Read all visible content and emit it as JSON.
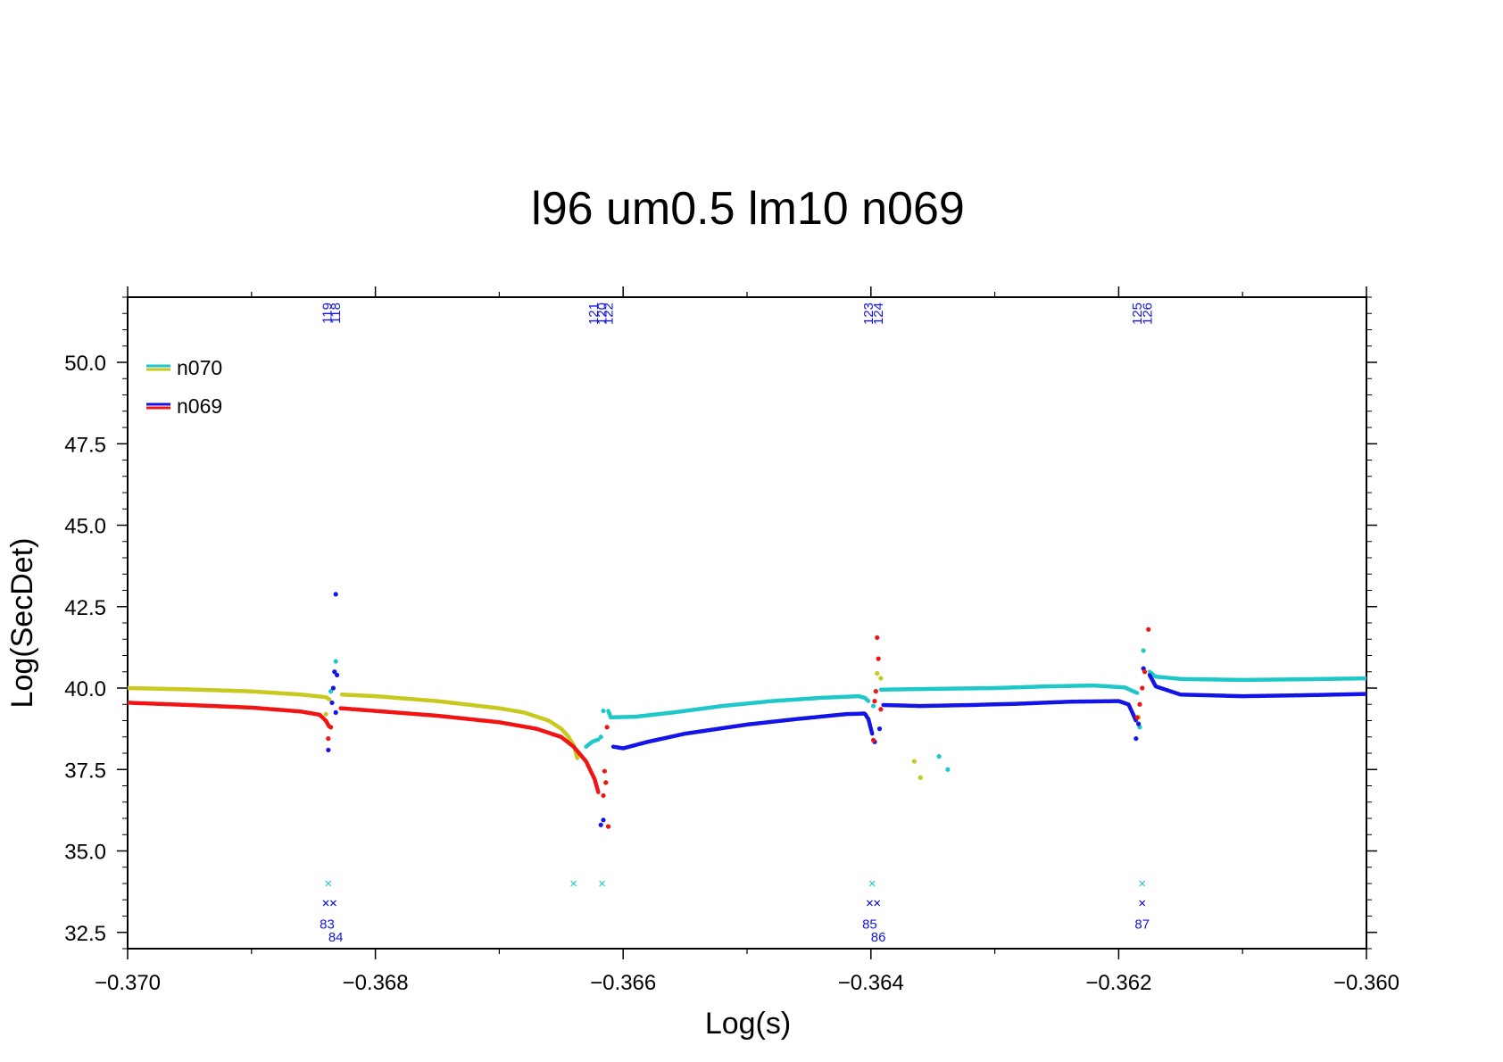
{
  "chart_data": {
    "type": "scatter",
    "title": "l96 um0.5 lm10 n069",
    "xlabel": "Log(s)",
    "ylabel": "Log(SecDet)",
    "xlim": [
      -0.37,
      -0.36
    ],
    "ylim": [
      32.0,
      52.0
    ],
    "x_ticks": [
      -0.37,
      -0.368,
      -0.366,
      -0.364,
      -0.362,
      -0.36
    ],
    "x_tick_labels": [
      "−0.370",
      "−0.368",
      "−0.366",
      "−0.364",
      "−0.362",
      "−0.360"
    ],
    "y_ticks": [
      32.5,
      35.0,
      37.5,
      40.0,
      42.5,
      45.0,
      47.5,
      50.0
    ],
    "y_tick_labels": [
      "32.5",
      "35.0",
      "37.5",
      "40.0",
      "42.5",
      "45.0",
      "47.5",
      "50.0"
    ],
    "grid": false,
    "legend_position": "top-left",
    "legend": [
      {
        "name": "n070",
        "colors": [
          "#1ec8c8",
          "#c8c81e"
        ]
      },
      {
        "name": "n069",
        "colors": [
          "#1414e6",
          "#f01414"
        ]
      }
    ],
    "series": [
      {
        "name": "n070",
        "colors": {
          "positive": "#1ec8c8",
          "negative": "#c8c81e"
        },
        "segments": [
          {
            "color": "#c8c81e",
            "points": [
              [
                -0.37,
                40.0
              ],
              [
                -0.3695,
                39.96
              ],
              [
                -0.369,
                39.9
              ],
              [
                -0.3686,
                39.8
              ],
              [
                -0.3684,
                39.72
              ],
              [
                -0.36837,
                39.65
              ]
            ]
          },
          {
            "color": "#c8c81e",
            "points": [
              [
                -0.36827,
                39.8
              ],
              [
                -0.368,
                39.75
              ],
              [
                -0.3675,
                39.6
              ],
              [
                -0.367,
                39.38
              ],
              [
                -0.3668,
                39.25
              ],
              [
                -0.3666,
                39.0
              ],
              [
                -0.3665,
                38.75
              ],
              [
                -0.36645,
                38.55
              ],
              [
                -0.3664,
                38.25
              ],
              [
                -0.36637,
                37.85
              ]
            ]
          },
          {
            "color": "#1ec8c8",
            "points": [
              [
                -0.3663,
                38.2
              ],
              [
                -0.36625,
                38.35
              ],
              [
                -0.3662,
                38.42
              ]
            ]
          },
          {
            "color": "#1ec8c8",
            "points": [
              [
                -0.36612,
                39.3
              ],
              [
                -0.3661,
                39.1
              ],
              [
                -0.3659,
                39.12
              ],
              [
                -0.3656,
                39.25
              ],
              [
                -0.3652,
                39.45
              ],
              [
                -0.3648,
                39.6
              ],
              [
                -0.3644,
                39.7
              ],
              [
                -0.3641,
                39.75
              ],
              [
                -0.36405,
                39.7
              ],
              [
                -0.36402,
                39.6
              ]
            ]
          },
          {
            "color": "#1ec8c8",
            "points": [
              [
                -0.36392,
                39.95
              ],
              [
                -0.3638,
                39.96
              ],
              [
                -0.3634,
                39.98
              ],
              [
                -0.363,
                40.0
              ],
              [
                -0.3626,
                40.05
              ],
              [
                -0.3622,
                40.08
              ],
              [
                -0.36195,
                40.02
              ],
              [
                -0.36185,
                39.85
              ]
            ]
          },
          {
            "color": "#1ec8c8",
            "points": [
              [
                -0.36175,
                40.5
              ],
              [
                -0.3617,
                40.35
              ],
              [
                -0.3615,
                40.28
              ],
              [
                -0.361,
                40.25
              ],
              [
                -0.3605,
                40.27
              ],
              [
                -0.36,
                40.3
              ]
            ]
          }
        ],
        "scatter": [
          {
            "color": "#1ec8c8",
            "points": [
              [
                -0.36832,
                40.82
              ],
              [
                -0.36836,
                39.9
              ],
              [
                -0.36338,
                37.5
              ],
              [
                -0.36345,
                37.9
              ],
              [
                -0.36616,
                39.3
              ],
              [
                -0.36618,
                38.5
              ],
              [
                -0.36398,
                39.45
              ],
              [
                -0.3618,
                41.15
              ],
              [
                -0.36183,
                38.8
              ]
            ]
          },
          {
            "color": "#c8c81e",
            "points": [
              [
                -0.3684,
                39.2
              ],
              [
                -0.3636,
                37.25
              ],
              [
                -0.36365,
                37.75
              ],
              [
                -0.36614,
                37.1
              ],
              [
                -0.36395,
                40.45
              ],
              [
                -0.36392,
                40.3
              ],
              [
                -0.36184,
                39.1
              ]
            ]
          }
        ]
      },
      {
        "name": "n069",
        "colors": {
          "positive": "#1414e6",
          "negative": "#f01414"
        },
        "segments": [
          {
            "color": "#f01414",
            "points": [
              [
                -0.37,
                39.55
              ],
              [
                -0.3695,
                39.48
              ],
              [
                -0.369,
                39.4
              ],
              [
                -0.3686,
                39.28
              ],
              [
                -0.36845,
                39.18
              ],
              [
                -0.3684,
                39.0
              ],
              [
                -0.36837,
                38.8
              ]
            ]
          },
          {
            "color": "#f01414",
            "points": [
              [
                -0.36828,
                39.38
              ],
              [
                -0.368,
                39.3
              ],
              [
                -0.3675,
                39.15
              ],
              [
                -0.367,
                38.95
              ],
              [
                -0.3667,
                38.75
              ],
              [
                -0.3665,
                38.5
              ],
              [
                -0.3664,
                38.2
              ],
              [
                -0.3663,
                37.75
              ],
              [
                -0.36623,
                37.2
              ],
              [
                -0.3662,
                36.8
              ]
            ]
          },
          {
            "color": "#1414e6",
            "points": [
              [
                -0.36608,
                38.2
              ],
              [
                -0.366,
                38.15
              ],
              [
                -0.3658,
                38.35
              ],
              [
                -0.3655,
                38.6
              ],
              [
                -0.365,
                38.88
              ],
              [
                -0.3646,
                39.05
              ],
              [
                -0.3642,
                39.2
              ],
              [
                -0.36405,
                39.22
              ],
              [
                -0.36402,
                39.05
              ],
              [
                -0.36399,
                38.6
              ]
            ]
          },
          {
            "color": "#1414e6",
            "points": [
              [
                -0.3639,
                39.48
              ],
              [
                -0.3636,
                39.45
              ],
              [
                -0.3632,
                39.48
              ],
              [
                -0.3628,
                39.52
              ],
              [
                -0.3624,
                39.58
              ],
              [
                -0.362,
                39.6
              ],
              [
                -0.36192,
                39.5
              ],
              [
                -0.36186,
                39.0
              ]
            ]
          },
          {
            "color": "#1414e6",
            "points": [
              [
                -0.36175,
                40.4
              ],
              [
                -0.3617,
                40.05
              ],
              [
                -0.3615,
                39.8
              ],
              [
                -0.361,
                39.75
              ],
              [
                -0.3605,
                39.78
              ],
              [
                -0.36,
                39.82
              ]
            ]
          }
        ],
        "scatter": [
          {
            "color": "#1414e6",
            "points": [
              [
                -0.36832,
                42.88
              ],
              [
                -0.36833,
                40.5
              ],
              [
                -0.36831,
                40.4
              ],
              [
                -0.36834,
                40.0
              ],
              [
                -0.36835,
                39.55
              ],
              [
                -0.36832,
                39.25
              ],
              [
                -0.36838,
                38.1
              ],
              [
                -0.36616,
                35.95
              ],
              [
                -0.36618,
                35.8
              ],
              [
                -0.36397,
                38.35
              ],
              [
                -0.36393,
                38.75
              ],
              [
                -0.3618,
                40.6
              ],
              [
                -0.36184,
                38.9
              ],
              [
                -0.36186,
                38.45
              ]
            ]
          },
          {
            "color": "#f01414",
            "points": [
              [
                -0.36838,
                38.45
              ],
              [
                -0.36836,
                38.8
              ],
              [
                -0.36613,
                38.8
              ],
              [
                -0.36615,
                37.45
              ],
              [
                -0.36614,
                37.1
              ],
              [
                -0.36616,
                36.7
              ],
              [
                -0.36612,
                35.75
              ],
              [
                -0.36395,
                41.55
              ],
              [
                -0.36394,
                40.9
              ],
              [
                -0.36396,
                39.9
              ],
              [
                -0.36397,
                39.6
              ],
              [
                -0.36392,
                39.35
              ],
              [
                -0.36398,
                38.4
              ],
              [
                -0.36176,
                41.8
              ],
              [
                -0.36179,
                40.5
              ],
              [
                -0.36181,
                40.0
              ],
              [
                -0.36183,
                39.5
              ],
              [
                -0.36185,
                39.1
              ]
            ]
          }
        ]
      }
    ],
    "top_markers": [
      {
        "label": "118",
        "x": -0.36832,
        "color": "#1414e6"
      },
      {
        "label": "119",
        "x": -0.36839,
        "color": "#1414e6"
      },
      {
        "label": "120",
        "x": -0.36617,
        "color": "#1414e6"
      },
      {
        "label": "121",
        "x": -0.36624,
        "color": "#1414e6"
      },
      {
        "label": "122",
        "x": -0.36612,
        "color": "#1414e6"
      },
      {
        "label": "123",
        "x": -0.36402,
        "color": "#1414e6"
      },
      {
        "label": "124",
        "x": -0.36394,
        "color": "#1414e6"
      },
      {
        "label": "125",
        "x": -0.36185,
        "color": "#1414e6"
      },
      {
        "label": "126",
        "x": -0.36177,
        "color": "#1414e6"
      }
    ],
    "cross_markers": [
      {
        "x": -0.36838,
        "y": 34.0,
        "color": "#1ec8c8"
      },
      {
        "x": -0.3664,
        "y": 34.0,
        "color": "#1ec8c8"
      },
      {
        "x": -0.36617,
        "y": 34.0,
        "color": "#1ec8c8"
      },
      {
        "x": -0.36399,
        "y": 34.0,
        "color": "#1ec8c8"
      },
      {
        "x": -0.36181,
        "y": 34.0,
        "color": "#1ec8c8"
      },
      {
        "x": -0.3684,
        "y": 33.4,
        "color": "#1414e6"
      },
      {
        "x": -0.36834,
        "y": 33.4,
        "color": "#1414e6"
      },
      {
        "x": -0.36401,
        "y": 33.4,
        "color": "#1414e6"
      },
      {
        "x": -0.36395,
        "y": 33.4,
        "color": "#1414e6"
      },
      {
        "x": -0.36181,
        "y": 33.4,
        "color": "#1414e6"
      }
    ],
    "bottom_labels": [
      {
        "label": "83",
        "x": -0.36839,
        "y": 32.75,
        "color": "#1414e6"
      },
      {
        "label": "84",
        "x": -0.36832,
        "y": 32.35,
        "color": "#1414e6"
      },
      {
        "label": "85",
        "x": -0.36401,
        "y": 32.75,
        "color": "#1414e6"
      },
      {
        "label": "86",
        "x": -0.36394,
        "y": 32.35,
        "color": "#1414e6"
      },
      {
        "label": "87",
        "x": -0.36181,
        "y": 32.75,
        "color": "#1414e6"
      }
    ]
  }
}
